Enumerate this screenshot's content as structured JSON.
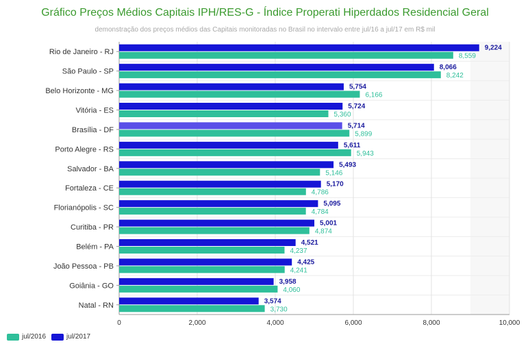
{
  "chart_data": {
    "type": "bar",
    "orientation": "horizontal",
    "title": "Gráfico Preços Médios Capitais IPH/RES-G - Índice Properati Hiperdados Residencial Geral",
    "subtitle": "demonstração dos preços médios das Capitais monitoradas no Brasil no intervalo entre jul/16 a jul/17 em R$ mil",
    "categories": [
      "Rio de Janeiro - RJ",
      "São Paulo - SP",
      "Belo Horizonte - MG",
      "Vitória - ES",
      "Brasília - DF",
      "Porto Alegre - RS",
      "Salvador - BA",
      "Fortaleza - CE",
      "Florianópolis - SC",
      "Curitiba - PR",
      "Belém - PA",
      "João Pessoa - PB",
      "Goiânia - GO",
      "Natal - RN"
    ],
    "series": [
      {
        "name": "jul/2017",
        "color": "#1515d6",
        "label_color": "#1a1a9e",
        "values": [
          9224,
          8066,
          5754,
          5724,
          5714,
          5611,
          5493,
          5170,
          5095,
          5001,
          4521,
          4425,
          3958,
          3574
        ],
        "labels": [
          "9,224",
          "8,066",
          "5,754",
          "5,724",
          "5,714",
          "5,611",
          "5,493",
          "5,170",
          "5,095",
          "5,001",
          "4,521",
          "4,425",
          "3,958",
          "3,574"
        ]
      },
      {
        "name": "jul/2016",
        "color": "#2fbf9a",
        "label_color": "#2fbf9a",
        "values": [
          8559,
          8242,
          6166,
          5360,
          5899,
          5943,
          5146,
          4786,
          4784,
          4874,
          4237,
          4241,
          4060,
          3730
        ],
        "labels": [
          "8,559",
          "8,242",
          "6,166",
          "5,360",
          "5,899",
          "5,943",
          "5,146",
          "4,786",
          "4,784",
          "4,874",
          "4,237",
          "4,241",
          "4,060",
          "3,730"
        ]
      }
    ],
    "highlight": {
      "category_index": 4,
      "series": "jul/2017",
      "color": "#5a4fe8"
    },
    "xlim": [
      0,
      10000
    ],
    "xticks": [
      0,
      2000,
      4000,
      6000,
      8000,
      10000
    ],
    "xtick_labels": [
      "0",
      "2,000",
      "4,000",
      "6,000",
      "8,000",
      "10,000"
    ],
    "grid": true,
    "legend": {
      "position": "bottom-left",
      "items": [
        "jul/2016",
        "jul/2017"
      ]
    }
  }
}
